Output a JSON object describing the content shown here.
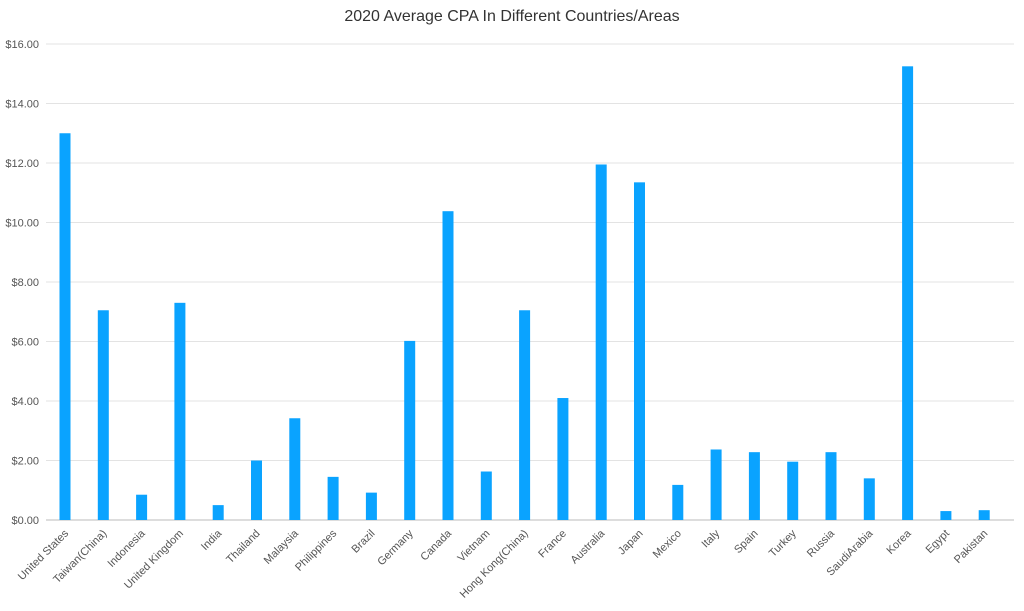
{
  "chart_data": {
    "type": "bar",
    "title": "2020 Average CPA In Different Countries/Areas",
    "xlabel": "",
    "ylabel": "",
    "ylim": [
      0,
      16
    ],
    "y_ticks": [
      "$0.00",
      "$2.00",
      "$4.00",
      "$6.00",
      "$8.00",
      "$10.00",
      "$12.00",
      "$14.00",
      "$16.00"
    ],
    "grid": true,
    "categories": [
      "United States",
      "Taiwan(China)",
      "Indonesia",
      "United Kingdom",
      "India",
      "Thailand",
      "Malaysia",
      "Philippines",
      "Brazil",
      "Germany",
      "Canada",
      "Vietnam",
      "Hong Kong(China)",
      "France",
      "Australia",
      "Japan",
      "Mexico",
      "Italy",
      "Spain",
      "Turkey",
      "Russia",
      "SaudiArabia",
      "Korea",
      "Egypt",
      "Pakistan"
    ],
    "values": [
      13.0,
      7.05,
      0.85,
      7.3,
      0.5,
      2.0,
      3.42,
      1.45,
      0.92,
      6.02,
      10.38,
      1.63,
      7.05,
      4.1,
      11.95,
      11.35,
      1.18,
      2.37,
      2.28,
      1.96,
      2.28,
      1.4,
      15.25,
      0.3,
      0.33
    ],
    "bar_color": "#0aa3ff"
  }
}
